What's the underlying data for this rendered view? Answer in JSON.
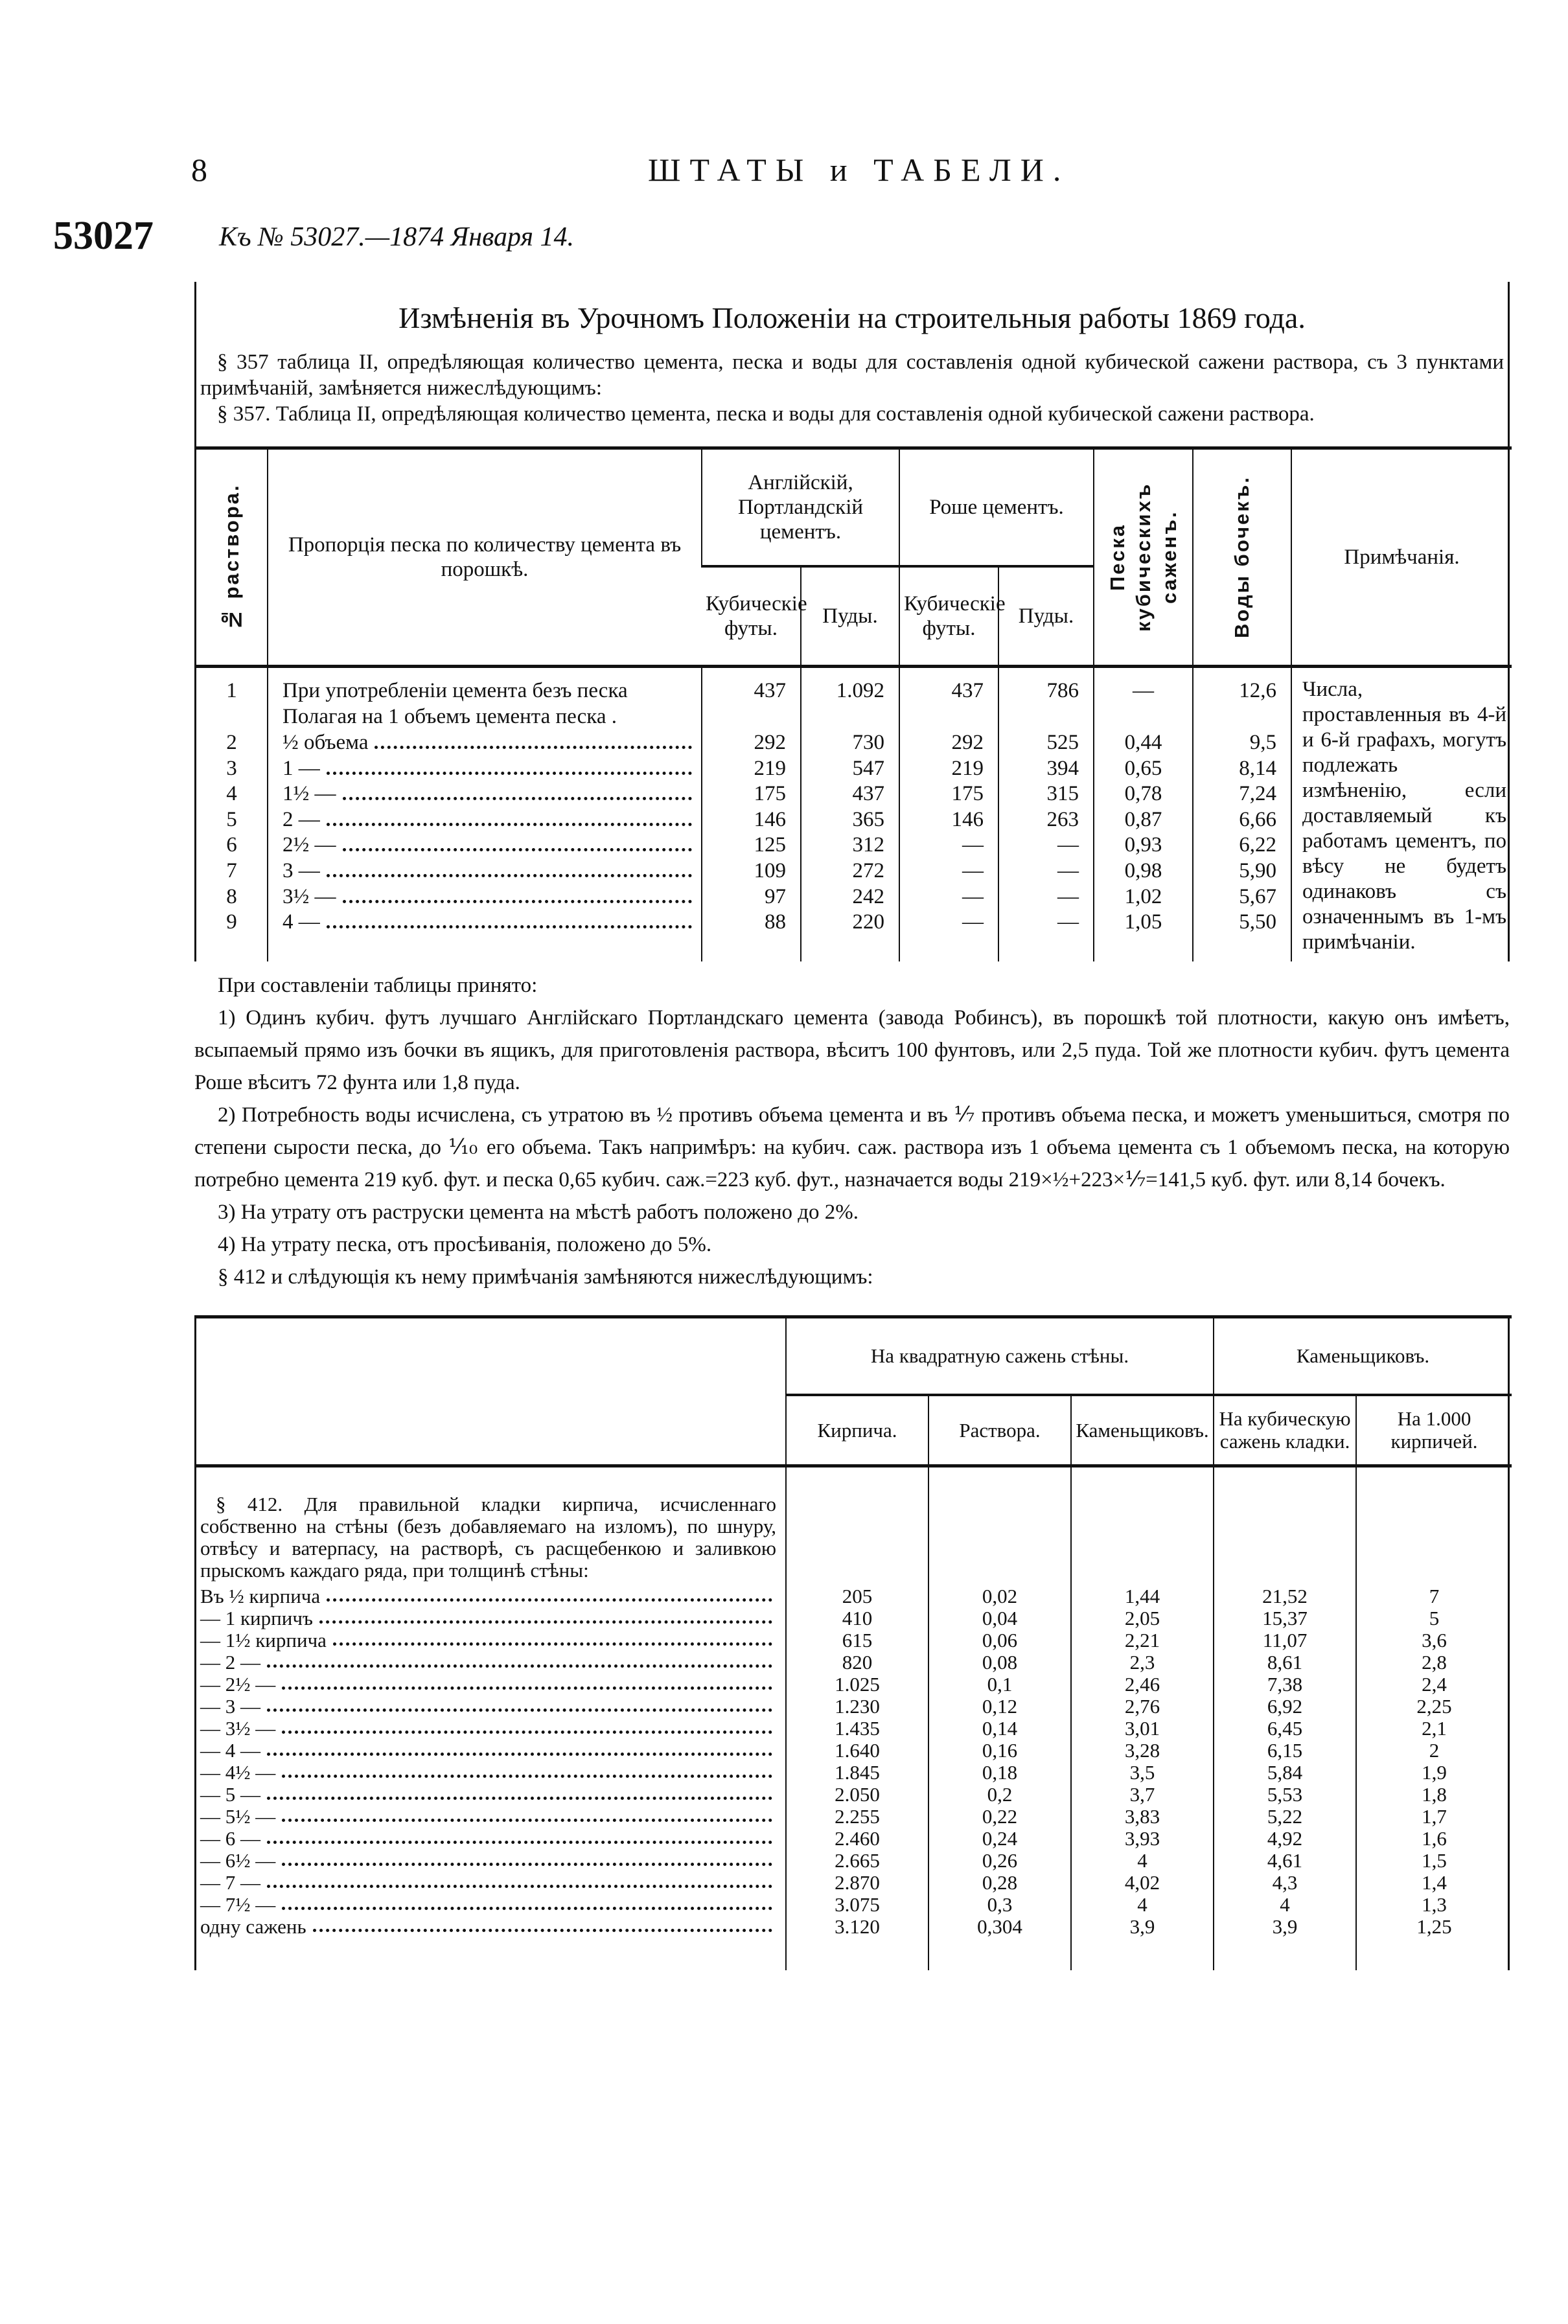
{
  "header": {
    "page_number": "8",
    "running_head": "ШТАТЫ и ТАБЕЛИ.",
    "doc_number": "53027",
    "doc_reference": "Къ № 53027.—1874 Января 14."
  },
  "section1": {
    "title": "Измѣненія въ Урочномъ Положеніи на строительныя работы 1869 года.",
    "intro": [
      "§ 357 таблица II, опредѣляющая количество цемента, песка и воды для составленія одной кубической сажени раствора, съ 3 пунктами примѣчаній, замѣняется нижеслѣдующимъ:",
      "§ 357. Таблица II, опредѣляющая количество цемента, песка и воды для составленія одной кубической сажени раствора."
    ],
    "table": {
      "headers": {
        "no": "№ раствора.",
        "proportion": "Пропорція песка по количеству цемента въ порошкѣ.",
        "english_cement": "Англійскій, Портландскій цементъ.",
        "roche_cement": "Роше цементъ.",
        "cubic_feet": "Кубическіе футы.",
        "poods": "Пуды.",
        "sand": "Песка кубическихъ саженъ.",
        "water": "Воды бочекъ.",
        "notes": "Примѣчанія."
      },
      "rows": [
        {
          "no": "1",
          "text": "При употребленіи цемента безъ песка",
          "leader": false,
          "values": [
            "437",
            "1.092",
            "437",
            "786",
            "—",
            "12,6"
          ]
        },
        {
          "no": "",
          "text": "Полагая на 1 объемъ цемента песка .",
          "leader": false,
          "values": [
            "",
            "",
            "",
            "",
            "",
            ""
          ]
        },
        {
          "no": "2",
          "text": "½ объема",
          "leader": true,
          "values": [
            "292",
            "730",
            "292",
            "525",
            "0,44",
            "9,5"
          ]
        },
        {
          "no": "3",
          "text": "1     —",
          "leader": true,
          "values": [
            "219",
            "547",
            "219",
            "394",
            "0,65",
            "8,14"
          ]
        },
        {
          "no": "4",
          "text": "1½   —",
          "leader": true,
          "values": [
            "175",
            "437",
            "175",
            "315",
            "0,78",
            "7,24"
          ]
        },
        {
          "no": "5",
          "text": "2     —",
          "leader": true,
          "values": [
            "146",
            "365",
            "146",
            "263",
            "0,87",
            "6,66"
          ]
        },
        {
          "no": "6",
          "text": "2½   —",
          "leader": true,
          "values": [
            "125",
            "312",
            "—",
            "—",
            "0,93",
            "6,22"
          ]
        },
        {
          "no": "7",
          "text": "3     —",
          "leader": true,
          "values": [
            "109",
            "272",
            "—",
            "—",
            "0,98",
            "5,90"
          ]
        },
        {
          "no": "8",
          "text": "3½   —",
          "leader": true,
          "values": [
            "97",
            "242",
            "—",
            "—",
            "1,02",
            "5,67"
          ]
        },
        {
          "no": "9",
          "text": "4     —",
          "leader": true,
          "values": [
            "88",
            "220",
            "—",
            "—",
            "1,05",
            "5,50"
          ]
        }
      ],
      "note": "Числа, проставленныя въ 4-й и 6-й графахъ, могутъ подлежать измѣненію, если доставляемый къ работамъ цементъ, по вѣсу не будетъ одинаковъ съ означеннымъ въ 1-мъ примѣчаніи."
    }
  },
  "paragraphs": [
    "При составленіи таблицы принято:",
    "1) Одинъ кубич. футъ лучшаго Англійскаго Портландскаго цемента (завода Робинсъ), въ порошкѣ той плотности, какую онъ имѣетъ, всыпаемый прямо изъ бочки въ ящикъ, для приготовленія раствора, вѣситъ 100 фунтовъ, или 2,5 пуда. Той же плотности кубич. футъ цемента Роше вѣситъ 72 фунта или 1,8 пуда.",
    "2) Потребность воды исчислена, съ утратою въ ½ противъ объема цемента и въ ⅐ противъ объема песка, и можетъ уменьшиться, смотря по степени сырости песка, до ⅒ его объема. Такъ напримѣръ: на кубич. саж. раствора изъ 1 объема цемента съ 1 объемомъ песка, на которую потребно цемента 219 куб. фут. и песка 0,65 кубич. саж.=223 куб. фут., назначается воды 219×½+223×⅐=141,5 куб. фут. или 8,14 бочекъ.",
    "3) На утрату отъ раструски цемента на мѣстѣ работъ положено до 2%.",
    "4) На утрату песка, отъ просѣиванія, положено до 5%.",
    "§ 412 и слѣдующія къ нему примѣчанія замѣняются нижеслѣдующимъ:"
  ],
  "section2": {
    "headers": {
      "group1": "На квадратную сажень стѣны.",
      "group2": "Каменьщиковъ.",
      "bricks": "Кирпича.",
      "mortar": "Раствора.",
      "masons": "Каменьщиковъ.",
      "per_cubic": "На кубическую сажень кладки.",
      "per_1000": "На 1.000 кирпичей."
    },
    "paragraph": "§ 412. Для правильной кладки кирпича, исчисленнаго собственно на стѣны (безъ добавляемаго на изломъ), по шнуру, отвѣсу и ватерпасу, на растворѣ, съ расщебенкою и заливкою прыскомъ каждаго ряда, при толщинѣ стѣны:",
    "rows": [
      {
        "label": "Въ ½ кирпича",
        "values": [
          "205",
          "0,02",
          "1,44",
          "21,52",
          "7"
        ]
      },
      {
        "label": "— 1 кирпичъ",
        "values": [
          "410",
          "0,04",
          "2,05",
          "15,37",
          "5"
        ]
      },
      {
        "label": "— 1½ кирпича",
        "values": [
          "615",
          "0,06",
          "2,21",
          "11,07",
          "3,6"
        ]
      },
      {
        "label": "— 2    —",
        "values": [
          "820",
          "0,08",
          "2,3",
          "8,61",
          "2,8"
        ]
      },
      {
        "label": "— 2½  —",
        "values": [
          "1.025",
          "0,1",
          "2,46",
          "7,38",
          "2,4"
        ]
      },
      {
        "label": "— 3    —",
        "values": [
          "1.230",
          "0,12",
          "2,76",
          "6,92",
          "2,25"
        ]
      },
      {
        "label": "— 3½  —",
        "values": [
          "1.435",
          "0,14",
          "3,01",
          "6,45",
          "2,1"
        ]
      },
      {
        "label": "— 4    —",
        "values": [
          "1.640",
          "0,16",
          "3,28",
          "6,15",
          "2"
        ]
      },
      {
        "label": "— 4½  —",
        "values": [
          "1.845",
          "0,18",
          "3,5",
          "5,84",
          "1,9"
        ]
      },
      {
        "label": "— 5    —",
        "values": [
          "2.050",
          "0,2",
          "3,7",
          "5,53",
          "1,8"
        ]
      },
      {
        "label": "— 5½  —",
        "values": [
          "2.255",
          "0,22",
          "3,83",
          "5,22",
          "1,7"
        ]
      },
      {
        "label": "— 6    —",
        "values": [
          "2.460",
          "0,24",
          "3,93",
          "4,92",
          "1,6"
        ]
      },
      {
        "label": "— 6½  —",
        "values": [
          "2.665",
          "0,26",
          "4",
          "4,61",
          "1,5"
        ]
      },
      {
        "label": "— 7    —",
        "values": [
          "2.870",
          "0,28",
          "4,02",
          "4,3",
          "1,4"
        ]
      },
      {
        "label": "— 7½  —",
        "values": [
          "3.075",
          "0,3",
          "4",
          "4",
          "1,3"
        ]
      },
      {
        "label": "одну сажень",
        "values": [
          "3.120",
          "0,304",
          "3,9",
          "3,9",
          "1,25"
        ]
      }
    ]
  }
}
